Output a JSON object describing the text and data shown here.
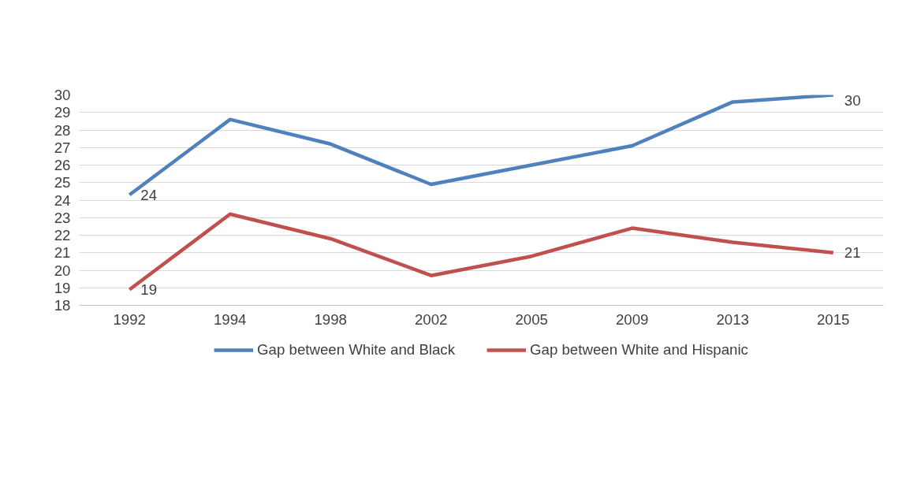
{
  "chart_data": {
    "type": "line",
    "categories": [
      "1992",
      "1994",
      "1998",
      "2002",
      "2005",
      "2009",
      "2013",
      "2015"
    ],
    "series": [
      {
        "name": "Gap between White and Black",
        "color": "#4f81bd",
        "values": [
          24.3,
          28.6,
          27.2,
          24.9,
          26.0,
          27.1,
          29.6,
          30.0
        ],
        "value_labels": [
          "24",
          null,
          null,
          null,
          null,
          null,
          null,
          "30"
        ]
      },
      {
        "name": "Gap between White and Hispanic",
        "color": "#c0504d",
        "values": [
          18.9,
          23.2,
          21.8,
          19.7,
          20.8,
          22.4,
          21.6,
          21.0
        ],
        "value_labels": [
          "19",
          null,
          null,
          null,
          null,
          null,
          null,
          "21"
        ]
      }
    ],
    "ylim": [
      18,
      30
    ],
    "yticks": [
      18,
      19,
      20,
      21,
      22,
      23,
      24,
      25,
      26,
      27,
      28,
      29,
      30
    ],
    "grid": "y",
    "legend": "bottom",
    "marker": "none",
    "line_style": "solid"
  }
}
